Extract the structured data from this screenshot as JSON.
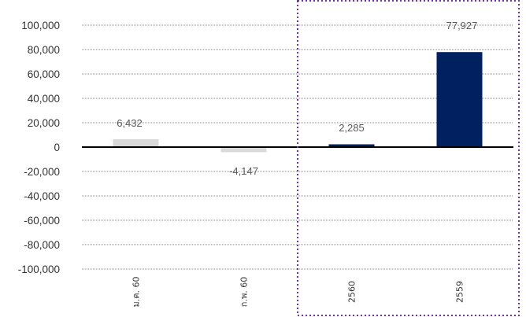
{
  "chart_data": {
    "type": "bar",
    "categories": [
      "ม.ค. 60",
      "ก.พ. 60",
      "2560",
      "2559"
    ],
    "values": [
      6432,
      -4147,
      2285,
      77927
    ],
    "data_labels": [
      "6,432",
      "-4,147",
      "2,285",
      "77,927"
    ],
    "bar_colors": [
      "#d9d9d9",
      "#d9d9d9",
      "#002060",
      "#002060"
    ],
    "title": "",
    "xlabel": "",
    "ylabel": "",
    "ylim": [
      -100000,
      100000
    ],
    "y_ticks": [
      100000,
      80000,
      60000,
      40000,
      20000,
      0,
      -20000,
      -40000,
      -60000,
      -80000,
      -100000
    ],
    "y_tick_labels": [
      "100,000",
      "80,000",
      "60,000",
      "40,000",
      "20,000",
      "0",
      "-20,000",
      "-40,000",
      "-60,000",
      "-80,000",
      "-100,000"
    ],
    "grid": "horizontal dotted",
    "highlight_box": {
      "categories": [
        "2560",
        "2559"
      ],
      "style": "dotted",
      "color": "#7030a0"
    }
  }
}
